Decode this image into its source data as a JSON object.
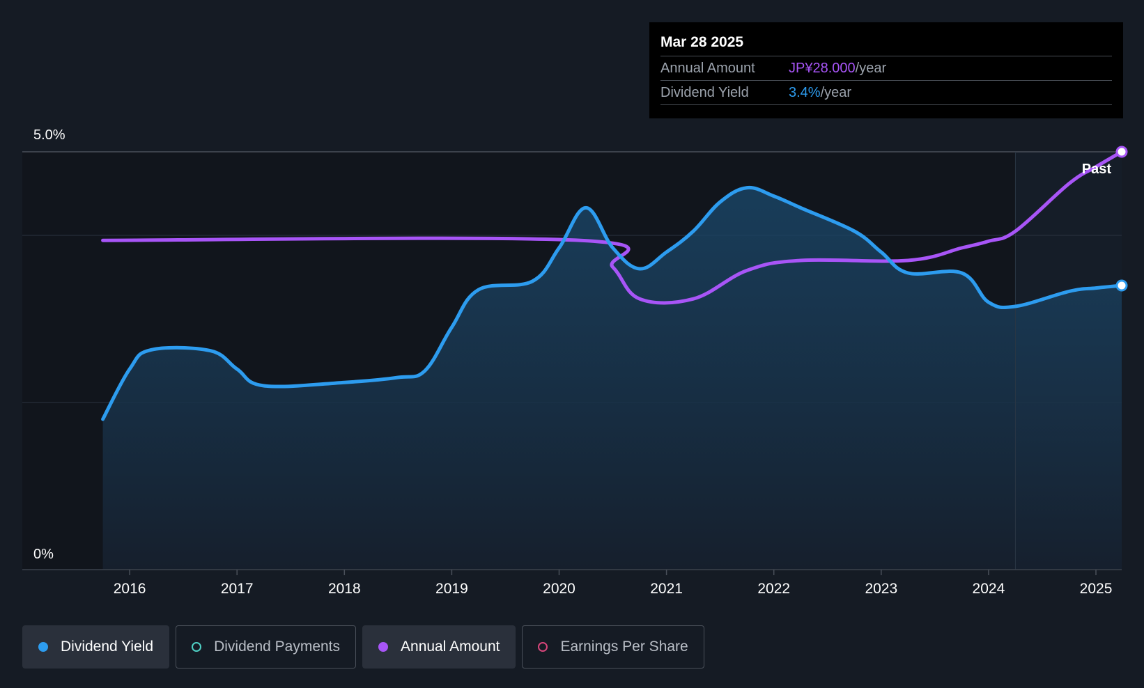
{
  "tooltip": {
    "date": "Mar 28 2025",
    "rows": [
      {
        "label": "Annual Amount",
        "value": "JP¥28.000",
        "unit": "/year",
        "color": "#a855f7"
      },
      {
        "label": "Dividend Yield",
        "value": "3.4%",
        "unit": "/year",
        "color": "#2d9cef"
      }
    ]
  },
  "legend": [
    {
      "label": "Dividend Yield",
      "color": "#2d9cef",
      "filled": true,
      "active": true
    },
    {
      "label": "Dividend Payments",
      "color": "#4fd1c5",
      "filled": false,
      "active": false
    },
    {
      "label": "Annual Amount",
      "color": "#a855f7",
      "filled": true,
      "active": true
    },
    {
      "label": "Earnings Per Share",
      "color": "#d6457a",
      "filled": false,
      "active": false
    }
  ],
  "chart_data": {
    "type": "line",
    "ylabel_top": "5.0%",
    "ylabel_bottom": "0%",
    "ylim": [
      0,
      5.0
    ],
    "xlim": [
      2015.0,
      2025.24
    ],
    "x_ticks": [
      2016,
      2017,
      2018,
      2019,
      2020,
      2021,
      2022,
      2023,
      2024,
      2025
    ],
    "past_label": "Past",
    "past_start": 2024.25,
    "series": [
      {
        "name": "Dividend Yield",
        "color": "#2d9cef",
        "x": [
          2015.75,
          2016.0,
          2016.2,
          2016.75,
          2017.0,
          2017.25,
          2018.0,
          2018.5,
          2018.75,
          2019.0,
          2019.25,
          2019.75,
          2020.0,
          2020.25,
          2020.5,
          2020.75,
          2021.0,
          2021.25,
          2021.5,
          2021.75,
          2022.0,
          2022.25,
          2022.75,
          2023.0,
          2023.25,
          2023.75,
          2024.0,
          2024.25,
          2024.75,
          2025.0,
          2025.24
        ],
        "y": [
          1.8,
          2.4,
          2.63,
          2.62,
          2.4,
          2.2,
          2.24,
          2.3,
          2.38,
          2.9,
          3.35,
          3.45,
          3.85,
          4.33,
          3.85,
          3.6,
          3.8,
          4.05,
          4.4,
          4.57,
          4.47,
          4.33,
          4.05,
          3.8,
          3.55,
          3.55,
          3.2,
          3.15,
          3.33,
          3.37,
          3.4
        ]
      },
      {
        "name": "Annual Amount",
        "color": "#a855f7",
        "x": [
          2015.75,
          2020.2,
          2020.5,
          2020.75,
          2021.25,
          2021.75,
          2022.25,
          2023.25,
          2023.75,
          2024.0,
          2024.25,
          2024.75,
          2025.0,
          2025.24
        ],
        "y": [
          3.94,
          3.94,
          3.62,
          3.24,
          3.24,
          3.58,
          3.7,
          3.7,
          3.85,
          3.93,
          4.05,
          4.62,
          4.82,
          5.0
        ]
      }
    ]
  }
}
